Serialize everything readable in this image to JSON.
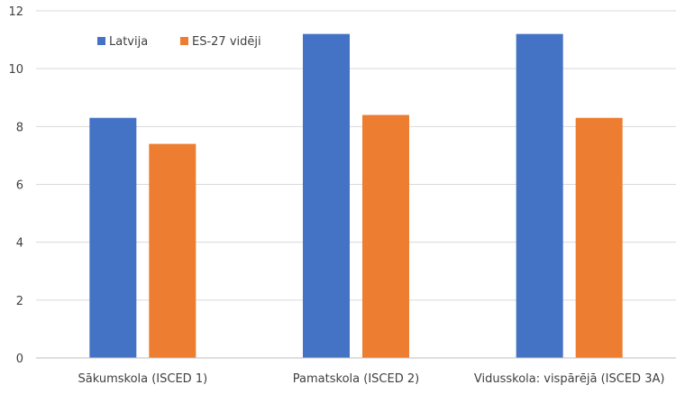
{
  "chart_data": {
    "type": "bar",
    "categories": [
      "Sākumskola (ISCED 1)",
      "Pamatskola (ISCED 2)",
      "Vidusskola: vispārējā (ISCED 3A)"
    ],
    "series": [
      {
        "name": "Latvija",
        "values": [
          8.3,
          11.2,
          11.2
        ],
        "color": "#4472c4"
      },
      {
        "name": "ES-27 vidēji",
        "values": [
          7.4,
          8.4,
          8.3
        ],
        "color": "#ed7d31"
      }
    ],
    "title": "",
    "xlabel": "",
    "ylabel": "",
    "ylim": [
      0,
      12
    ],
    "yticks": [
      0,
      2,
      4,
      6,
      8,
      10,
      12
    ],
    "grid": true,
    "legend_position": "top-left"
  }
}
